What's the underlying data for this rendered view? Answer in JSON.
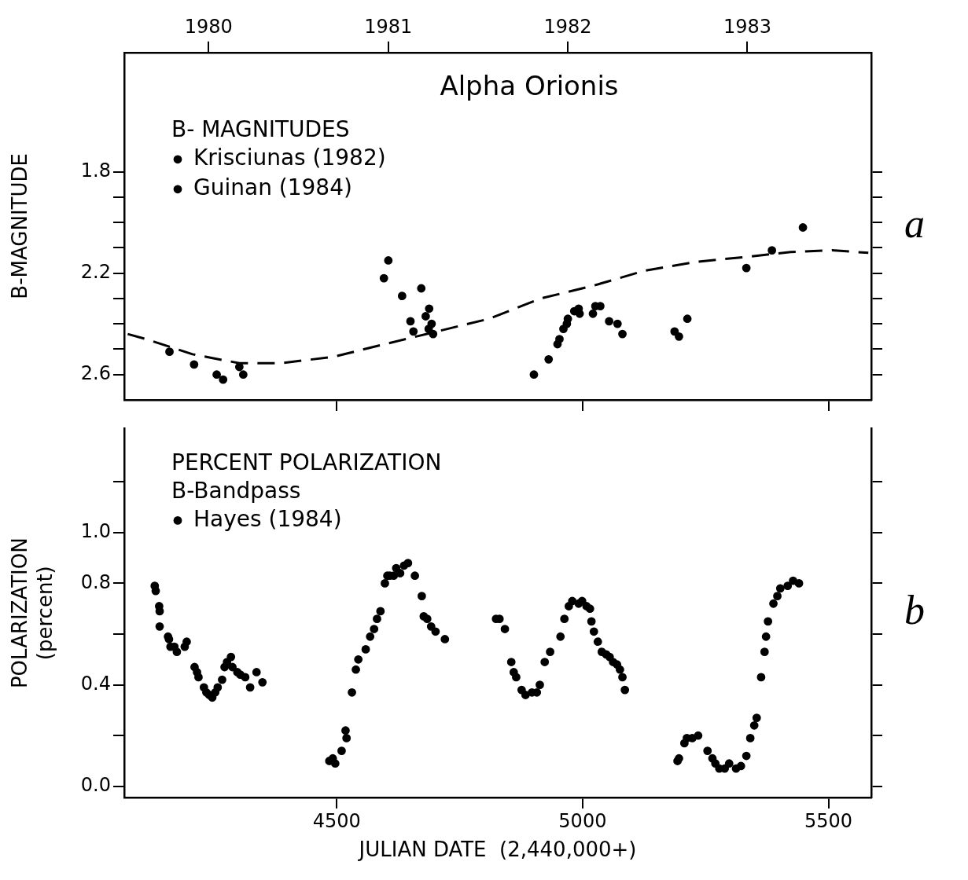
{
  "chart_data": [
    {
      "type": "scatter",
      "title": "Alpha Orionis",
      "legend_title": "B- MAGNITUDES",
      "ylabel": "B-MAGNITUDE",
      "legend": "top left",
      "grid": false,
      "tick_labels": "y",
      "xlim": [
        4068,
        5587
      ],
      "xticks": [
        4500,
        5000,
        5500
      ],
      "x2lim": [
        1979.53,
        1983.69
      ],
      "x2ticks": [
        1980,
        1981,
        1982,
        1983
      ],
      "ylim": [
        2.7,
        1.33
      ],
      "yticks": [
        1.8,
        {
          "value": 1.9,
          "label": null
        },
        {
          "value": 2.0,
          "label": null
        },
        {
          "value": 2.1,
          "label": null
        },
        2.2,
        {
          "value": 2.3,
          "label": null
        },
        {
          "value": 2.4,
          "label": null
        },
        {
          "value": 2.5,
          "label": null
        },
        2.6
      ],
      "annotations": [
        "a"
      ],
      "series": [
        {
          "name": "Krisciunas (1982)",
          "color": "#000000",
          "marker": "circle",
          "x": [
            4160,
            4210,
            4256,
            4269,
            4302,
            4310,
            4596,
            4605,
            4633,
            4650,
            4656,
            4672,
            4681,
            4688,
            4687,
            4693,
            4696,
            4901,
            4931,
            4970,
            5021
          ],
          "values": [
            2.51,
            2.56,
            2.6,
            2.62,
            2.57,
            2.6,
            2.22,
            2.15,
            2.29,
            2.39,
            2.43,
            2.26,
            2.37,
            2.34,
            2.42,
            2.4,
            2.44,
            2.6,
            2.54,
            2.38,
            2.36
          ]
        },
        {
          "name": "Guinan (1984)",
          "color": "#000000",
          "marker": "circle",
          "x": [
            4949,
            4953,
            4961,
            4968,
            4971,
            4983,
            4992,
            4994,
            5026,
            5036,
            5054,
            5071,
            5081,
            5187,
            5196,
            5213,
            5333,
            5385,
            5448
          ],
          "values": [
            2.48,
            2.46,
            2.42,
            2.4,
            null,
            2.35,
            2.34,
            2.36,
            2.33,
            2.33,
            2.39,
            2.4,
            2.44,
            2.43,
            2.45,
            2.38,
            2.18,
            2.11,
            2.02
          ]
        },
        {
          "type": "line",
          "color": "#000000",
          "marker": "none",
          "line_style": "dashed",
          "x": [
            4075,
            4112,
            4207,
            4302,
            4387,
            4493,
            4598,
            4704,
            4810,
            4915,
            5021,
            5127,
            5233,
            5333,
            5423,
            5507,
            5581
          ],
          "values": [
            2.44,
            2.46,
            2.52,
            2.555,
            2.555,
            2.53,
            2.48,
            2.43,
            2.38,
            2.3,
            2.25,
            2.19,
            2.155,
            2.136,
            2.117,
            2.11,
            2.12
          ]
        }
      ]
    },
    {
      "type": "scatter",
      "legend_title": "PERCENT POLARIZATION\nB-Bandpass",
      "ylabel": "POLARIZATION\n(percent)",
      "xlabel": "JULIAN DATE  (2,440,000+)",
      "legend": "top left",
      "grid": false,
      "xlim": [
        4068,
        5587
      ],
      "xticks": [
        4500,
        5000,
        5500
      ],
      "ylim": [
        -0.044,
        1.41
      ],
      "yticks": [
        {
          "value": 0,
          "label": "0.0"
        },
        {
          "value": 0.2,
          "label": null
        },
        0.4,
        {
          "value": 0.6,
          "label": null
        },
        0.8,
        {
          "value": 1,
          "label": "1.0"
        },
        {
          "value": 1.2,
          "label": null
        }
      ],
      "annotations": [
        "b"
      ],
      "series": [
        {
          "name": "Hayes (1984)",
          "color": "#000000",
          "marker": "circle",
          "x": [
            4130,
            4132,
            4139,
            4140,
            4140,
            4157,
            4159,
            4162,
            4170,
            4175,
            4191,
            4195,
            4211,
            4216,
            4219,
            4230,
            4235,
            4241,
            4247,
            4253,
            4258,
            4267,
            4272,
            4277,
            4285,
            4288,
            4298,
            4304,
            4314,
            4324,
            4337,
            4349,
            4485,
            4492,
            4497,
            4510,
            4518,
            4520,
            4531,
            4539,
            4544,
            4559,
            4568,
            4576,
            4582,
            4589,
            4598,
            4603,
            4608,
            4616,
            4621,
            4629,
            4637,
            4645,
            4659,
            4673,
            4677,
            4684,
            4692,
            4701,
            4720,
            4824,
            4831,
            4842,
            4855,
            4860,
            4865,
            4876,
            4884,
            4897,
            4907,
            4913,
            4923,
            4934,
            4955,
            4963,
            4972,
            4979,
            4992,
            4999,
            5008,
            5015,
            5018,
            5023,
            5031,
            5039,
            5048,
            5055,
            5062,
            5070,
            5076,
            5081,
            5086,
            5193,
            5196,
            5207,
            5212,
            5223,
            5235,
            5254,
            5264,
            5270,
            5278,
            5289,
            5298,
            5312,
            5322,
            5333,
            5341,
            5349,
            5354,
            5363,
            5370,
            5373,
            5377,
            5388,
            5396,
            5402,
            5417,
            5428,
            5440
          ],
          "values": [
            0.79,
            0.77,
            0.71,
            0.69,
            0.63,
            0.59,
            0.58,
            0.55,
            0.55,
            0.53,
            0.55,
            0.57,
            0.47,
            0.45,
            0.43,
            0.39,
            0.37,
            0.36,
            0.35,
            0.37,
            0.39,
            0.42,
            0.47,
            0.49,
            0.51,
            0.47,
            0.45,
            0.44,
            0.43,
            0.39,
            0.45,
            0.41,
            0.1,
            0.11,
            0.09,
            0.14,
            0.22,
            0.19,
            0.37,
            0.46,
            0.5,
            0.54,
            0.59,
            0.62,
            0.66,
            0.69,
            0.8,
            0.83,
            0.83,
            0.83,
            0.86,
            0.84,
            0.87,
            0.88,
            0.83,
            0.75,
            0.67,
            0.66,
            0.63,
            0.61,
            0.58,
            0.66,
            0.66,
            0.62,
            0.49,
            0.45,
            0.43,
            0.38,
            0.36,
            0.37,
            0.37,
            0.4,
            0.49,
            0.53,
            0.59,
            0.66,
            0.71,
            0.73,
            0.72,
            0.73,
            0.71,
            0.7,
            0.65,
            0.61,
            0.57,
            0.53,
            0.52,
            0.51,
            0.49,
            0.48,
            0.46,
            0.43,
            0.38,
            0.1,
            0.11,
            0.17,
            0.19,
            0.19,
            0.2,
            0.14,
            0.11,
            0.09,
            0.07,
            0.07,
            0.09,
            0.07,
            0.08,
            0.12,
            0.19,
            0.24,
            0.27,
            0.43,
            0.53,
            0.59,
            0.65,
            0.72,
            0.75,
            0.78,
            0.79,
            0.81,
            0.8
          ]
        }
      ]
    }
  ]
}
